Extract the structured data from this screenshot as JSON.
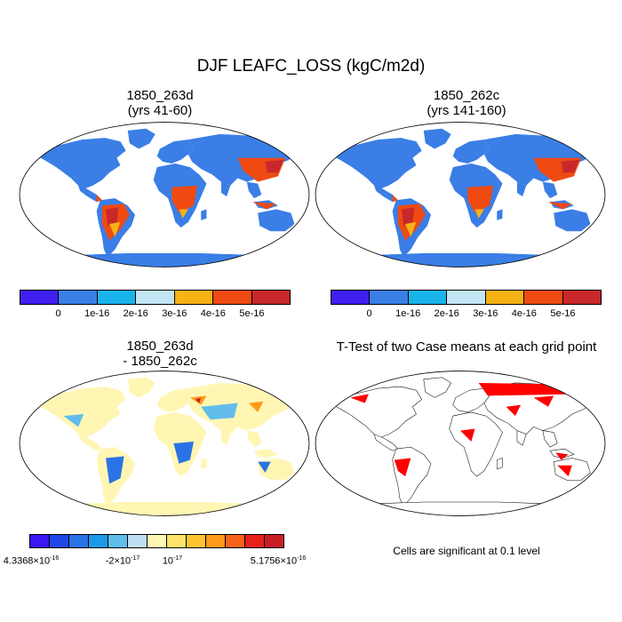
{
  "title": "DJF LEAFC_LOSS (kgC/m2d)",
  "panels": {
    "top_left": {
      "title1": "1850_263d",
      "title2": "(yrs 41-60)"
    },
    "top_right": {
      "title1": "1850_262c",
      "title2": "(yrs 141-160)"
    },
    "bottom_left": {
      "title1": "1850_263d",
      "title2": "- 1850_262c"
    },
    "bottom_right": {
      "title1": "T-Test of two Case means at each grid point",
      "footnote": "Cells are significant at 0.1 level"
    }
  },
  "colorbar_main": {
    "colors": [
      "#3f1ff0",
      "#3a7ee6",
      "#1ab4ec",
      "#c2e6f4",
      "#f7b216",
      "#ee4a12",
      "#c8282a"
    ],
    "labels": [
      "0",
      "1e-16",
      "2e-16",
      "3e-16",
      "4e-16",
      "5e-16"
    ]
  },
  "colorbar_diff": {
    "colors": [
      "#3a18f2",
      "#1f47e6",
      "#2a73e6",
      "#1d99e9",
      "#62bcec",
      "#bfe0f2",
      "#fff6b4",
      "#ffe36a",
      "#ffc52e",
      "#ff9a1a",
      "#f7621a",
      "#e8201a",
      "#c81e28"
    ],
    "labels": {
      "min_mantissa": "4.3368×10",
      "min_exp": "-16",
      "mid1_mantissa": "-2×10",
      "mid1_exp": "-17",
      "mid2_mantissa": "10",
      "mid2_exp": "-17",
      "max_mantissa": "5.1756×10",
      "max_exp": "-16"
    }
  },
  "map_colors": {
    "background": "#3a7ee6",
    "diff_background": "#fff6b4",
    "significant": "#ff0000",
    "ocean": "#ffffff"
  }
}
